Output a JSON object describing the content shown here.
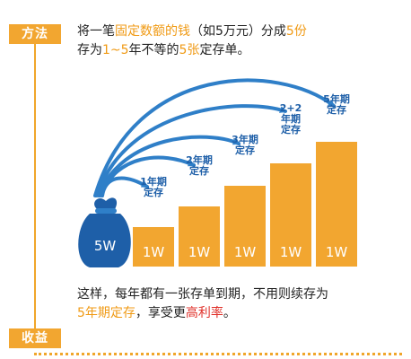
{
  "tags": {
    "method": "方法",
    "income": "收益"
  },
  "top_text": {
    "line1": [
      {
        "t": "将一笔",
        "c": ""
      },
      {
        "t": "固定数额的钱",
        "c": "hl-o"
      },
      {
        "t": "（如5万元）分成",
        "c": ""
      },
      {
        "t": "5份",
        "c": "hl-o"
      }
    ],
    "line2": [
      {
        "t": "存为",
        "c": ""
      },
      {
        "t": "1~5",
        "c": "hl-o"
      },
      {
        "t": "年不等的",
        "c": ""
      },
      {
        "t": "5张",
        "c": "hl-o"
      },
      {
        "t": "定存单。",
        "c": ""
      }
    ]
  },
  "bag": {
    "label": "5W"
  },
  "deposits": [
    {
      "amount": "1W",
      "term": [
        "1年期",
        "定存"
      ]
    },
    {
      "amount": "1W",
      "term": [
        "2年期",
        "定存"
      ]
    },
    {
      "amount": "1W",
      "term": [
        "3年期",
        "定存"
      ]
    },
    {
      "amount": "1W",
      "term": [
        "2+2",
        "年期",
        "定存"
      ]
    },
    {
      "amount": "1W",
      "term": [
        "5年期",
        "定存"
      ]
    }
  ],
  "bottom_text": {
    "line1": [
      {
        "t": "这样，每年都有一张存单到期，不用则续存为",
        "c": ""
      }
    ],
    "line2": [
      {
        "t": "5年期定存",
        "c": "hl-o"
      },
      {
        "t": "，享受更",
        "c": ""
      },
      {
        "t": "高利率",
        "c": "hl-r"
      },
      {
        "t": "。",
        "c": ""
      }
    ]
  },
  "colors": {
    "orange": "#f2a630",
    "blue": "#2f7fc8",
    "navy": "#1e5fa8"
  }
}
